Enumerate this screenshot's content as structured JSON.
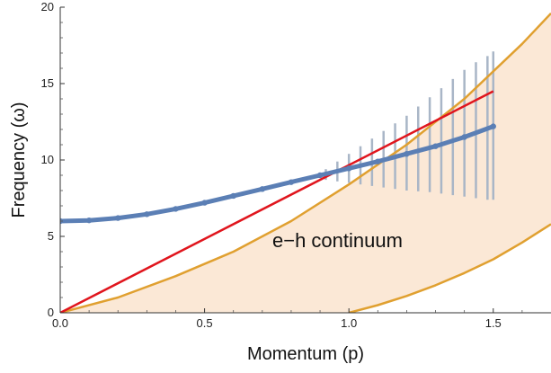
{
  "chart_data": {
    "type": "line",
    "xlabel": "Momentum (p)",
    "ylabel": "Frequency (ω)",
    "xlim": [
      0,
      1.7
    ],
    "ylim": [
      0,
      20
    ],
    "x_ticks": [
      "0.0",
      "0.5",
      "1.0",
      "1.5"
    ],
    "y_ticks": [
      "0",
      "5",
      "10",
      "15",
      "20"
    ],
    "grid": false,
    "annotation": "e−h continuum",
    "colors": {
      "continuum_fill": "#fbe8d6",
      "continuum_edge": "#e0a030",
      "dispersion_points": "#5b7fb5",
      "error_bars": "#a9b6c7",
      "linear_line": "#e0151d",
      "axes": "#333333"
    },
    "series": [
      {
        "style": "orange-boundary",
        "x": [
          0.0,
          0.2,
          0.4,
          0.6,
          0.8,
          1.0,
          1.2,
          1.4,
          1.6,
          1.7
        ],
        "y": [
          0.0,
          1.0,
          2.4,
          4.0,
          6.0,
          8.4,
          11.0,
          14.0,
          17.6,
          19.6
        ]
      },
      {
        "style": "orange-boundary",
        "x": [
          1.0,
          1.1,
          1.2,
          1.3,
          1.4,
          1.5,
          1.6,
          1.7
        ],
        "y": [
          0.0,
          0.5,
          1.1,
          1.8,
          2.6,
          3.5,
          4.6,
          5.8
        ]
      },
      {
        "style": "red-line",
        "x": [
          0.0,
          1.5
        ],
        "y": [
          0.0,
          14.5
        ]
      },
      {
        "style": "blue-points",
        "x": [
          0.0,
          0.1,
          0.2,
          0.3,
          0.4,
          0.5,
          0.6,
          0.7,
          0.8,
          0.9,
          1.0,
          1.1,
          1.2,
          1.3,
          1.4,
          1.5
        ],
        "y": [
          6.0,
          6.05,
          6.2,
          6.45,
          6.8,
          7.2,
          7.65,
          8.1,
          8.55,
          9.0,
          9.45,
          9.9,
          10.4,
          10.9,
          11.5,
          12.2
        ]
      }
    ],
    "error_bars": {
      "x": [
        0.92,
        0.96,
        1.0,
        1.04,
        1.08,
        1.12,
        1.16,
        1.2,
        1.24,
        1.28,
        1.32,
        1.36,
        1.4,
        1.44,
        1.48,
        1.5
      ],
      "y_low": [
        8.7,
        8.6,
        8.5,
        8.4,
        8.3,
        8.2,
        8.1,
        8.0,
        7.95,
        7.9,
        7.8,
        7.7,
        7.6,
        7.5,
        7.4,
        7.4
      ],
      "y_high": [
        9.4,
        9.9,
        10.4,
        10.9,
        11.4,
        11.9,
        12.4,
        12.9,
        13.5,
        14.1,
        14.7,
        15.3,
        15.9,
        16.4,
        16.8,
        17.1
      ]
    }
  }
}
